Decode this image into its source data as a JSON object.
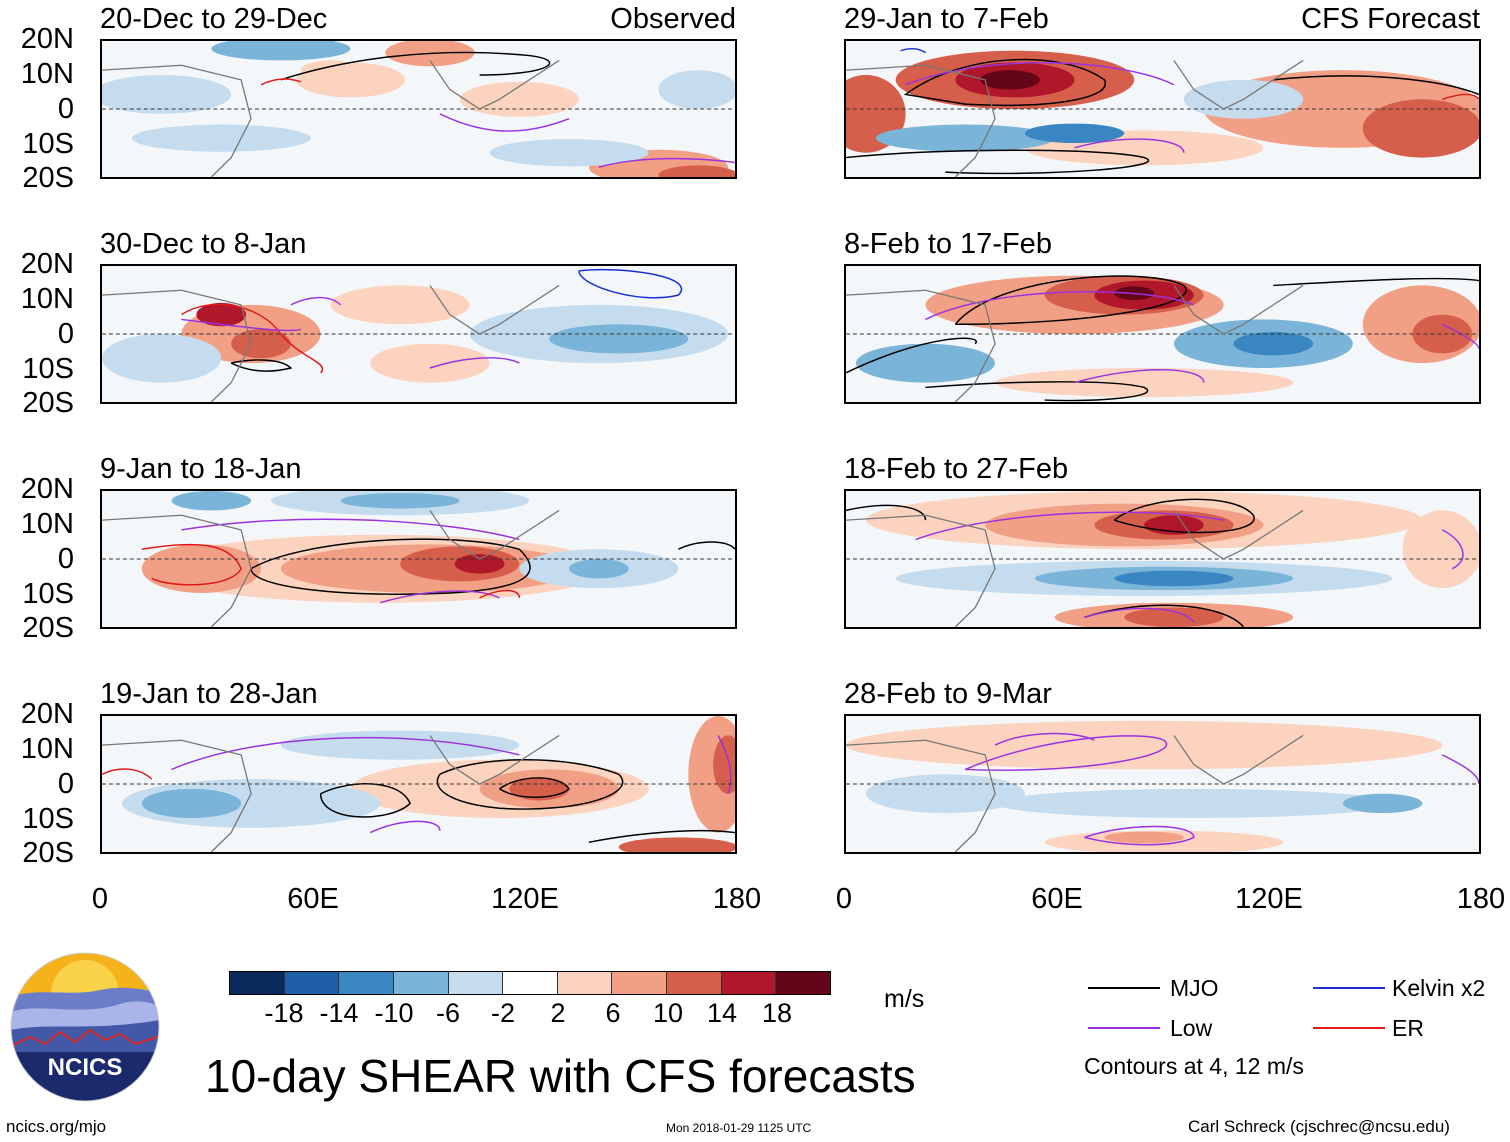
{
  "panels": {
    "p1": {
      "title": "20-Dec to 29-Dec",
      "tag": "Observed"
    },
    "p2": {
      "title": "29-Jan to 7-Feb",
      "tag": "CFS Forecast"
    },
    "p3": {
      "title": "30-Dec to 8-Jan"
    },
    "p4": {
      "title": "8-Feb to 17-Feb"
    },
    "p5": {
      "title": "9-Jan to 18-Jan"
    },
    "p6": {
      "title": "18-Feb to 27-Feb"
    },
    "p7": {
      "title": "19-Jan to 28-Jan"
    },
    "p8": {
      "title": "28-Feb to 9-Mar"
    }
  },
  "y_axis": [
    "20N",
    "10N",
    "0",
    "10S",
    "20S"
  ],
  "x_axis": [
    "0",
    "60E",
    "120E",
    "180"
  ],
  "colorbar": {
    "ticks": [
      "-18",
      "-14",
      "-10",
      "-6",
      "-2",
      "2",
      "6",
      "10",
      "14",
      "18"
    ],
    "unit": "m/s",
    "colors": [
      "#0b2a5c",
      "#1f5fa8",
      "#3a86c2",
      "#7ab4d8",
      "#c4dced",
      "#ffffff",
      "#fbd3bf",
      "#f1a086",
      "#d65f4b",
      "#b0172a",
      "#650618"
    ]
  },
  "legend": {
    "mjo": {
      "label": "MJO",
      "color": "#000000"
    },
    "low": {
      "label": "Low",
      "color": "#9b30e0"
    },
    "kelvin": {
      "label": "Kelvin x2",
      "color": "#1a2fd6"
    },
    "er": {
      "label": "ER",
      "color": "#e01818"
    },
    "note": "Contours at 4, 12 m/s"
  },
  "main_title": "10-day SHEAR with CFS forecasts",
  "logo_text": "NCICS",
  "footer": {
    "left": "ncics.org/mjo",
    "center": "Mon 2018-01-29 1125 UTC",
    "right": "Carl Schreck (cjschrec@ncsu.edu)"
  }
}
